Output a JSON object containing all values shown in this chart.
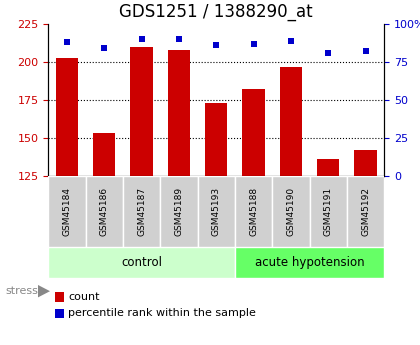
{
  "title": "GDS1251 / 1388290_at",
  "samples": [
    "GSM45184",
    "GSM45186",
    "GSM45187",
    "GSM45189",
    "GSM45193",
    "GSM45188",
    "GSM45190",
    "GSM45191",
    "GSM45192"
  ],
  "counts": [
    203,
    153,
    210,
    208,
    173,
    182,
    197,
    136,
    142
  ],
  "percentiles": [
    88,
    84,
    90,
    90,
    86,
    87,
    89,
    81,
    82
  ],
  "groups": [
    {
      "label": "control",
      "start": 0,
      "end": 5,
      "color": "#ccffcc"
    },
    {
      "label": "acute hypotension",
      "start": 5,
      "end": 9,
      "color": "#66ff66"
    }
  ],
  "bar_color": "#cc0000",
  "dot_color": "#0000cc",
  "ylim_left": [
    125,
    225
  ],
  "ylim_right": [
    0,
    100
  ],
  "yticks_left": [
    125,
    150,
    175,
    200,
    225
  ],
  "yticks_right": [
    0,
    25,
    50,
    75,
    100
  ],
  "grid_values": [
    150,
    175,
    200
  ],
  "stress_label": "stress",
  "legend_count_label": "count",
  "legend_percentile_label": "percentile rank within the sample",
  "bar_width": 0.6,
  "title_fontsize": 12,
  "axis_label_color_left": "#cc0000",
  "axis_label_color_right": "#0000cc",
  "sample_box_color": "#d0d0d0",
  "stress_arrow_color": "#888888"
}
